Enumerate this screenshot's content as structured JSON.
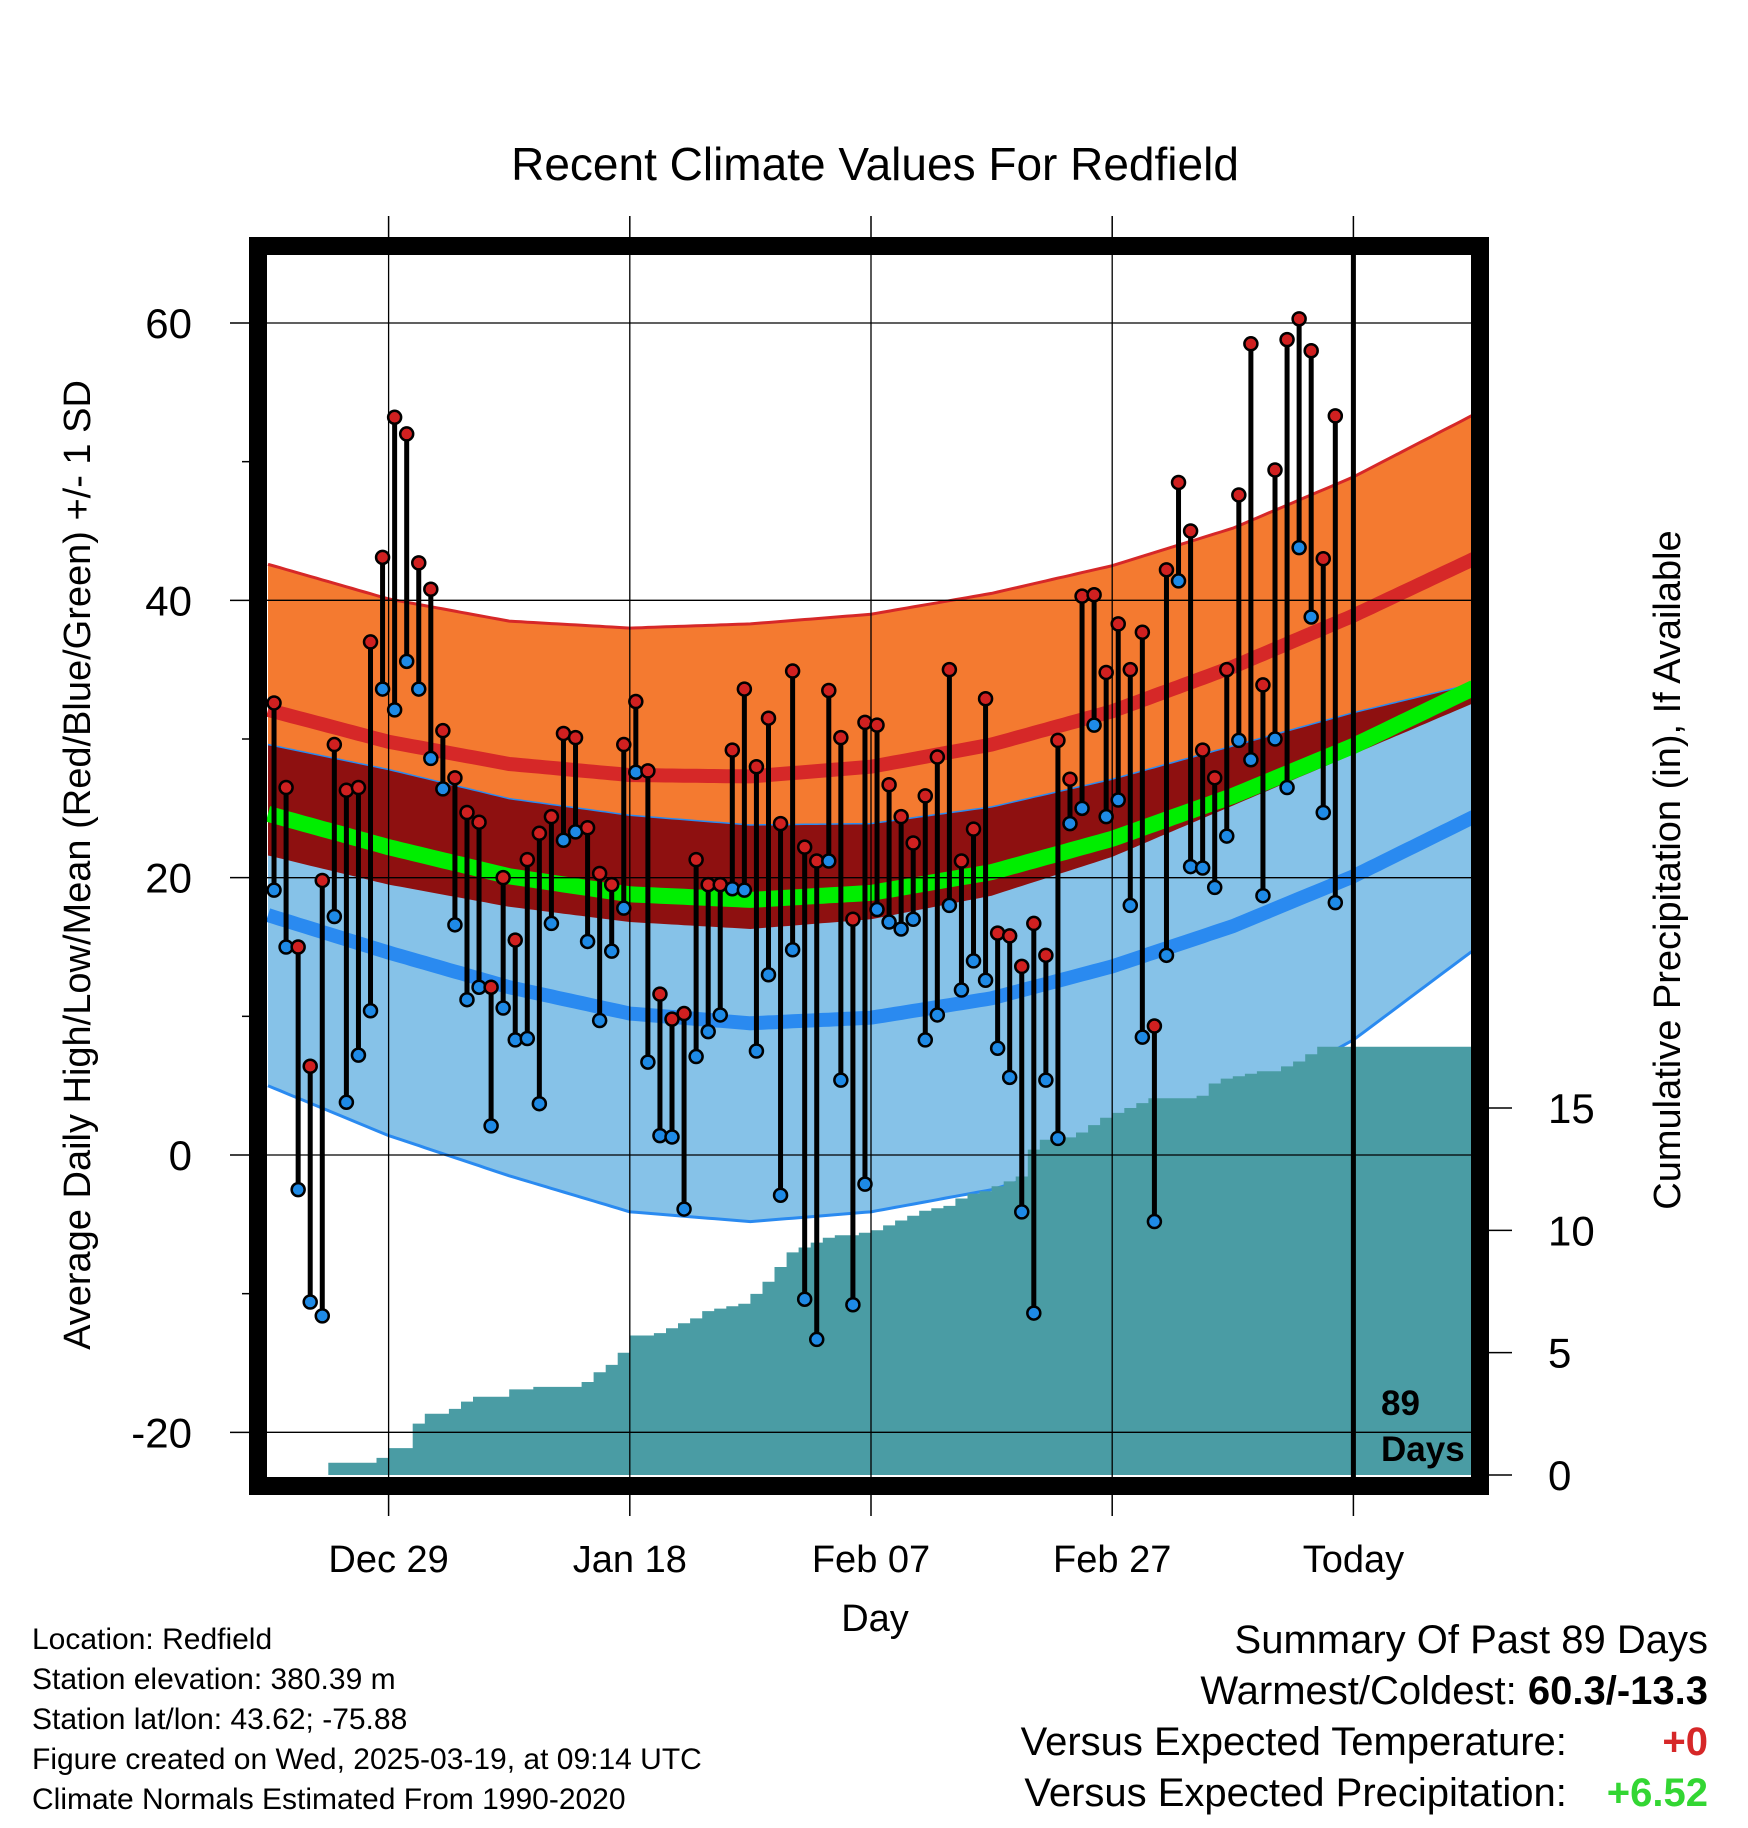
{
  "chart_data": {
    "type": "line",
    "title": "Recent Climate Values For Redfield",
    "xlabel": "Day",
    "ylabel": "Average Daily High/Low/Mean (Red/Blue/Green) +/- 1 SD",
    "y2label": "Cumulative Precipitation (in), If Available",
    "ylim": [
      -23,
      66
    ],
    "y2lim": [
      0,
      30
    ],
    "x_range_days": [
      0,
      100
    ],
    "grid": true,
    "x_ticks": [
      {
        "day": 10,
        "label": "Dec 29"
      },
      {
        "day": 30,
        "label": "Jan 18"
      },
      {
        "day": 50,
        "label": "Feb 07"
      },
      {
        "day": 70,
        "label": "Feb 27"
      },
      {
        "day": 90,
        "label": "Today"
      }
    ],
    "y_ticks": [
      60,
      40,
      20,
      0,
      -20
    ],
    "y2_ticks": [
      15,
      10,
      5,
      0
    ],
    "days_label": "89\nDays",
    "normals": {
      "days": [
        0,
        10,
        20,
        30,
        40,
        50,
        60,
        70,
        80,
        90,
        100
      ],
      "high_mean": [
        32.1,
        29.8,
        28.2,
        27.4,
        27.3,
        28.0,
        29.6,
        32.0,
        35.2,
        38.9,
        43.0
      ],
      "high_sd": [
        10.5,
        10.3,
        10.3,
        10.6,
        11.0,
        11.0,
        10.9,
        10.5,
        10.0,
        10.0,
        10.4
      ],
      "low_mean": [
        17.3,
        14.6,
        12.1,
        10.2,
        9.5,
        9.9,
        11.3,
        13.6,
        16.5,
        20.1,
        24.4
      ],
      "low_sd": [
        12.3,
        13.2,
        13.6,
        14.3,
        14.3,
        14.0,
        13.8,
        13.5,
        13.0,
        11.8,
        9.6
      ],
      "mean_mean": [
        24.6,
        22.2,
        20.1,
        18.8,
        18.4,
        18.9,
        20.4,
        22.8,
        25.9,
        29.5,
        33.7
      ]
    },
    "series": [
      {
        "name": "High",
        "values": [
          32.6,
          26.5,
          15.0,
          6.4,
          19.8,
          29.6,
          26.3,
          26.5,
          37.0,
          43.1,
          53.2,
          52.0,
          42.7,
          40.8,
          30.6,
          27.2,
          24.7,
          24.0,
          12.1,
          20.0,
          15.5,
          21.3,
          23.2,
          24.4,
          30.4,
          30.1,
          23.6,
          20.3,
          19.5,
          29.6,
          32.7,
          27.7,
          11.6,
          9.8,
          10.2,
          21.3,
          19.5,
          19.5,
          29.2,
          33.6,
          28.0,
          31.5,
          23.9,
          34.9,
          22.2,
          21.2,
          33.5,
          30.1,
          17.0,
          31.2,
          31.0,
          26.7,
          24.4,
          22.5,
          25.9,
          28.7,
          35.0,
          21.2,
          23.5,
          32.9,
          16.0,
          15.8,
          13.6,
          16.7,
          14.4,
          29.9,
          27.1,
          40.3,
          40.4,
          34.8,
          38.3,
          35.0,
          37.7,
          9.3,
          42.2,
          48.5,
          45.0,
          29.2,
          27.2,
          35.0,
          47.6,
          58.5,
          33.9,
          49.4,
          58.8,
          60.3,
          58.0,
          43.0,
          53.3
        ]
      },
      {
        "name": "Low",
        "values": [
          19.1,
          15.0,
          -2.5,
          -10.6,
          -11.6,
          17.2,
          3.8,
          7.2,
          10.4,
          33.6,
          32.1,
          35.6,
          33.6,
          28.6,
          26.4,
          16.6,
          11.2,
          12.1,
          2.1,
          10.6,
          8.3,
          8.4,
          3.7,
          16.7,
          22.7,
          23.3,
          15.4,
          9.7,
          14.7,
          17.8,
          27.6,
          6.7,
          1.4,
          1.3,
          -3.9,
          7.1,
          8.9,
          10.1,
          19.2,
          19.1,
          7.5,
          13.0,
          -2.9,
          14.8,
          -10.4,
          -13.3,
          21.2,
          5.4,
          -10.8,
          -2.1,
          17.7,
          16.8,
          16.3,
          17.0,
          8.3,
          10.1,
          18.0,
          11.9,
          14.0,
          12.6,
          7.7,
          5.6,
          -4.1,
          -11.4,
          5.4,
          1.2,
          23.9,
          25.0,
          31.0,
          24.4,
          25.6,
          18.0,
          8.5,
          -4.8,
          14.4,
          41.4,
          20.8,
          20.7,
          19.3,
          23.0,
          29.9,
          28.5,
          18.7,
          30.0,
          26.5,
          43.8,
          38.8,
          24.7,
          18.2
        ]
      },
      {
        "name": "Cumulative Precipitation",
        "values": [
          0,
          0,
          0,
          0,
          0,
          0.5,
          0.5,
          0.5,
          0.5,
          0.7,
          1.1,
          1.1,
          2.1,
          2.5,
          2.5,
          2.7,
          3.0,
          3.2,
          3.2,
          3.2,
          3.5,
          3.5,
          3.6,
          3.6,
          3.6,
          3.6,
          3.8,
          4.2,
          4.5,
          5.0,
          5.7,
          5.7,
          5.8,
          6.0,
          6.2,
          6.4,
          6.7,
          6.8,
          6.9,
          7.0,
          7.4,
          7.9,
          8.5,
          9.1,
          9.3,
          9.5,
          9.7,
          9.8,
          9.8,
          9.9,
          10.0,
          10.2,
          10.4,
          10.6,
          10.8,
          10.9,
          11.0,
          11.3,
          11.5,
          11.6,
          11.8,
          12.0,
          12.2,
          13.3,
          13.7,
          13.7,
          13.8,
          14.0,
          14.3,
          14.6,
          14.8,
          15.0,
          15.2,
          15.4,
          15.4,
          15.4,
          15.4,
          15.5,
          16.0,
          16.2,
          16.3,
          16.4,
          16.5,
          16.5,
          16.7,
          16.9,
          17.2,
          17.5,
          17.5,
          17.5,
          17.5,
          17.5,
          17.5,
          17.5,
          17.5,
          17.5,
          17.5,
          17.5,
          17.5,
          17.5,
          17.5
        ]
      }
    ]
  },
  "info": {
    "location": "Location: Redfield",
    "elevation": "Station elevation: 380.39 m",
    "latlon": "Station lat/lon: 43.62; -75.88",
    "created": "Figure created on Wed, 2025-03-19, at 09:14 UTC",
    "normals": "Climate Normals Estimated From 1990-2020"
  },
  "summary": {
    "title": "Summary Of Past 89 Days",
    "warm_cold_label": "Warmest/Coldest:",
    "warm_cold_value": "60.3/-13.3",
    "temp_label": "Versus Expected Temperature:",
    "temp_value": "+0",
    "precip_label": "Versus Expected Precipitation:",
    "precip_value": "+6.52"
  },
  "colors": {
    "high_band": "#f47a30",
    "high_line": "#d62828",
    "overlap_band": "#8e1010",
    "low_band": "#86c2e8",
    "low_line": "#2a8af0",
    "mean_line": "#00ee00",
    "precip_fill": "#4a9ca4",
    "high_marker": "#d02020",
    "low_marker": "#1e8ae6"
  }
}
